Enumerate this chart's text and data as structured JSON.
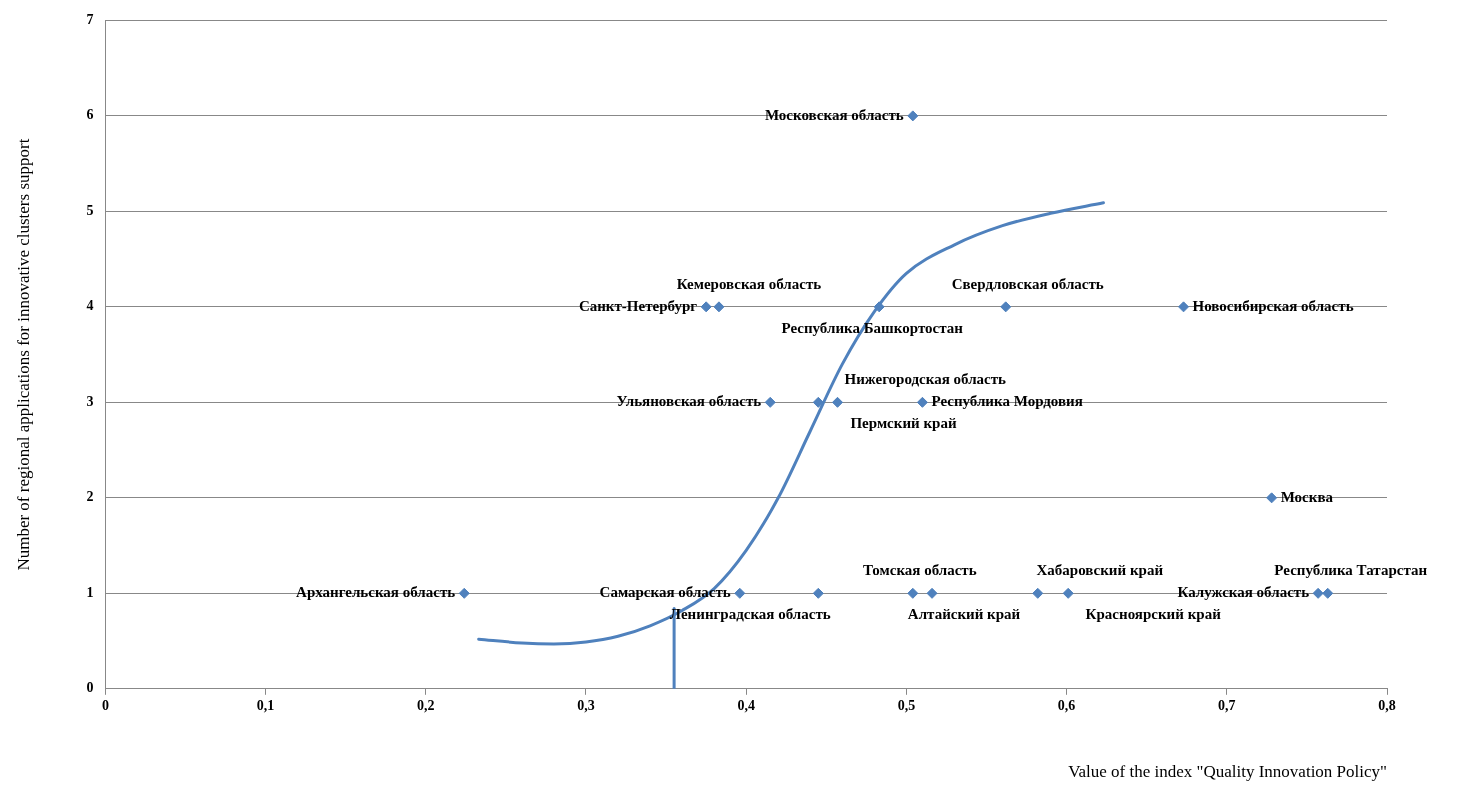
{
  "chart_data": {
    "type": "scatter",
    "xlabel": "Value of the index \"Quality Innovation Policy\"",
    "ylabel": "Number of regional applications for innovative clusters support",
    "series": [
      {
        "type": "scatter",
        "color": "#4f81bd",
        "marker": "diamond",
        "x": [
          0.224,
          0.396,
          0.445,
          0.504,
          0.516,
          0.582,
          0.601,
          0.757,
          0.763,
          0.728,
          0.504,
          0.375,
          0.383,
          0.483,
          0.562,
          0.673,
          0.415,
          0.445,
          0.457,
          0.51
        ],
        "values": [
          1,
          1,
          1,
          1,
          1,
          1,
          1,
          1,
          1,
          2,
          6,
          4,
          4,
          4,
          4,
          4,
          3,
          3,
          3,
          3
        ]
      },
      {
        "type": "line",
        "color": "#4f81bd",
        "x": [
          0.233,
          0.26,
          0.28,
          0.3,
          0.32,
          0.34,
          0.36,
          0.38,
          0.4,
          0.42,
          0.44,
          0.46,
          0.48,
          0.5,
          0.53,
          0.56,
          0.59,
          0.623
        ],
        "values": [
          0.52,
          0.48,
          0.47,
          0.49,
          0.55,
          0.66,
          0.82,
          1.05,
          1.45,
          2.0,
          2.7,
          3.4,
          3.95,
          4.35,
          4.65,
          4.85,
          4.98,
          5.09
        ]
      },
      {
        "type": "line",
        "color": "#4f81bd",
        "x": [
          0.355,
          0.355
        ],
        "values": [
          0,
          0.84
        ]
      }
    ],
    "annotations": [
      {
        "text": "Архангельская область",
        "x": 0.224,
        "y": 1
      },
      {
        "text": "Самарская область",
        "x": 0.396,
        "y": 1
      },
      {
        "text": "Ленинградская область",
        "x": 0.445,
        "y": 1
      },
      {
        "text": "Томская область",
        "x": 0.504,
        "y": 1
      },
      {
        "text": "Алтайский край",
        "x": 0.516,
        "y": 1
      },
      {
        "text": "Хабаровский край",
        "x": 0.582,
        "y": 1
      },
      {
        "text": "Красноярский край",
        "x": 0.601,
        "y": 1
      },
      {
        "text": "Калужская область",
        "x": 0.757,
        "y": 1
      },
      {
        "text": "Республика Татарстан",
        "x": 0.763,
        "y": 1
      },
      {
        "text": "Москва",
        "x": 0.728,
        "y": 2
      },
      {
        "text": "Московская область",
        "x": 0.504,
        "y": 6
      },
      {
        "text": "Санкт-Петербург",
        "x": 0.375,
        "y": 4
      },
      {
        "text": "Кемеровская область",
        "x": 0.383,
        "y": 4
      },
      {
        "text": "Республика Башкортостан",
        "x": 0.483,
        "y": 4
      },
      {
        "text": "Свердловская область",
        "x": 0.562,
        "y": 4
      },
      {
        "text": "Новосибирская область",
        "x": 0.673,
        "y": 4
      },
      {
        "text": "Ульяновская область",
        "x": 0.415,
        "y": 3
      },
      {
        "text": "Нижегородская область",
        "x": 0.445,
        "y": 3
      },
      {
        "text": "Пермский край",
        "x": 0.457,
        "y": 3
      },
      {
        "text": "Республика Мордовия",
        "x": 0.51,
        "y": 3
      }
    ],
    "xlim": [
      0,
      0.8
    ],
    "xticks": [
      0,
      {
        "value": 0.1,
        "label": "0,1"
      },
      {
        "value": 0.2,
        "label": "0,2"
      },
      {
        "value": 0.3,
        "label": "0,3"
      },
      {
        "value": 0.4,
        "label": "0,4"
      },
      {
        "value": 0.5,
        "label": "0,5"
      },
      {
        "value": 0.6,
        "label": "0,6"
      },
      {
        "value": 0.7,
        "label": "0,7"
      },
      {
        "value": 0.8,
        "label": "0,8"
      }
    ],
    "ylim": [
      0,
      7
    ],
    "yticks": [
      0,
      1,
      2,
      3,
      4,
      5,
      6,
      7
    ],
    "grid": "y",
    "legend": false,
    "line_style": "solid"
  }
}
